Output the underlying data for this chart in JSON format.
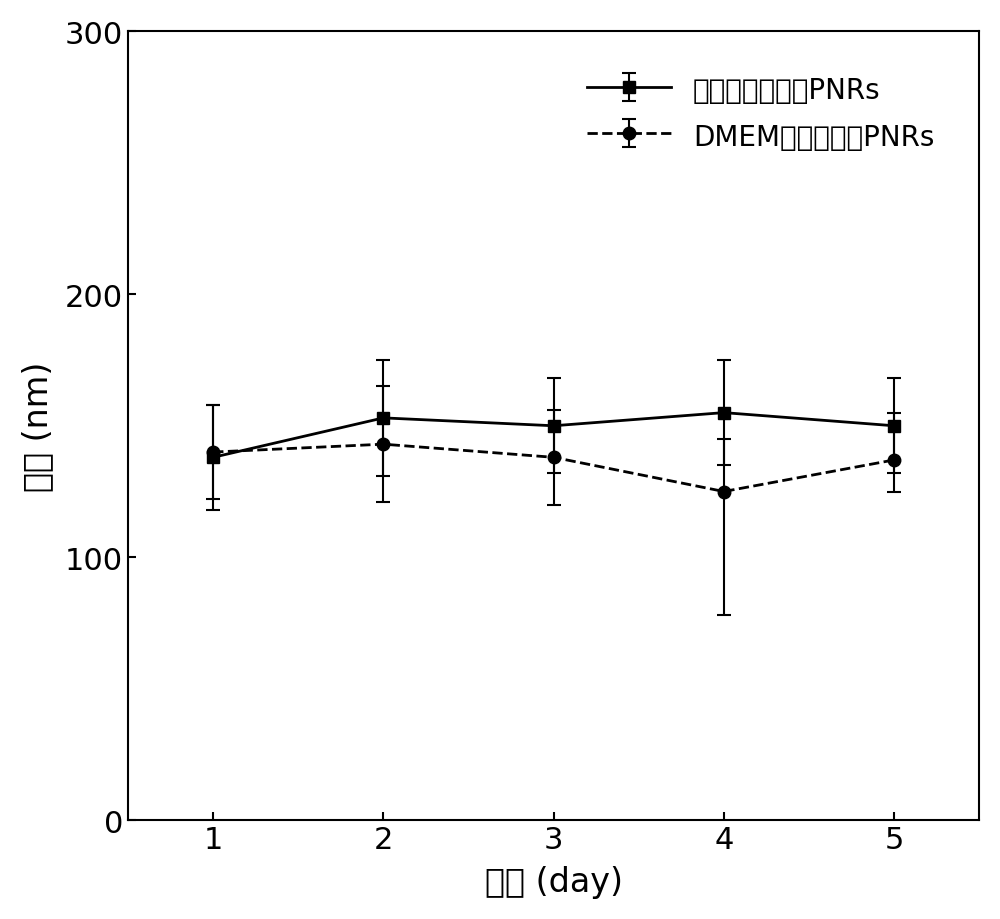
{
  "x": [
    1,
    2,
    3,
    4,
    5
  ],
  "pbs_y": [
    138,
    153,
    150,
    155,
    150
  ],
  "pbs_yerr_upper": [
    20,
    22,
    18,
    20,
    18
  ],
  "pbs_yerr_lower": [
    20,
    22,
    18,
    20,
    18
  ],
  "dmem_y": [
    140,
    143,
    138,
    125,
    137
  ],
  "dmem_yerr_upper": [
    18,
    22,
    18,
    20,
    18
  ],
  "dmem_yerr_lower": [
    18,
    22,
    18,
    47,
    12
  ],
  "xlabel": "时间 (day)",
  "ylabel": "粒径 (nm)",
  "legend1": "磷酸缓冲液中的PNRs",
  "legend2": "DMEM培养基中的PNRs",
  "xlim": [
    0.5,
    5.5
  ],
  "ylim": [
    0,
    300
  ],
  "yticks": [
    0,
    100,
    200,
    300
  ],
  "xticks": [
    1,
    2,
    3,
    4,
    5
  ],
  "line_color": "#000000",
  "background_color": "#ffffff",
  "label_fontsize": 24,
  "tick_fontsize": 22,
  "legend_fontsize": 20,
  "linewidth": 2.0,
  "markersize": 9
}
